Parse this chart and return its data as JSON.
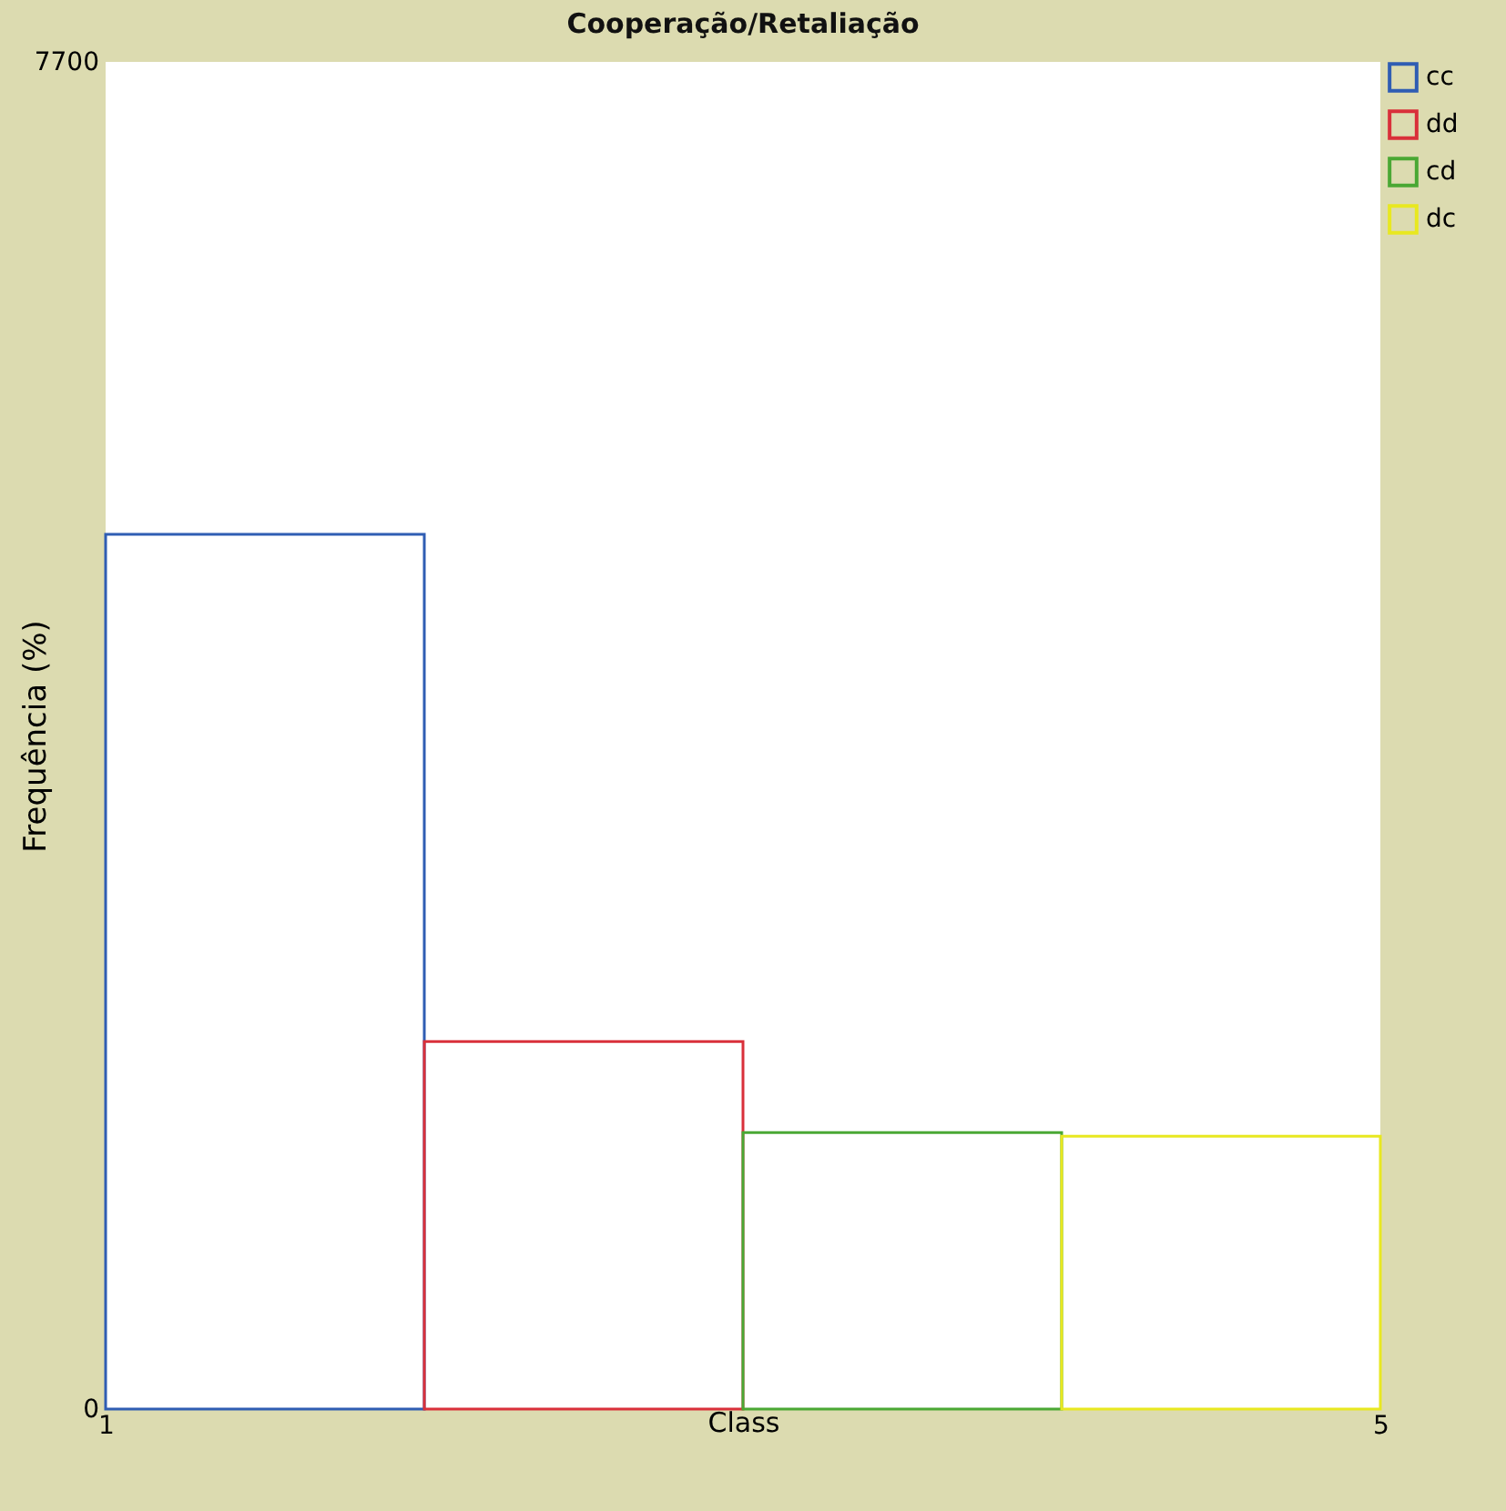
{
  "chart_data": {
    "type": "histogram",
    "title": "Cooperação/Retaliação",
    "xlabel": "Class",
    "ylabel": "Frequência (%)",
    "bins": [
      1,
      2,
      3,
      4,
      5
    ],
    "series": [
      {
        "name": "cc",
        "color": "#2f5db3",
        "values": [
          5000,
          null,
          null,
          null
        ]
      },
      {
        "name": "dd",
        "color": "#d9303a",
        "values": [
          null,
          2100,
          null,
          null
        ]
      },
      {
        "name": "cd",
        "color": "#4aa834",
        "values": [
          null,
          null,
          1580,
          null
        ]
      },
      {
        "name": "dc",
        "color": "#e8e820",
        "values": [
          null,
          null,
          null,
          1560
        ]
      }
    ],
    "xlim": [
      1,
      5
    ],
    "xticks": [
      1,
      5
    ],
    "ylim": [
      0,
      7700
    ],
    "yticks": [
      0,
      7700
    ],
    "legend": "top right"
  }
}
